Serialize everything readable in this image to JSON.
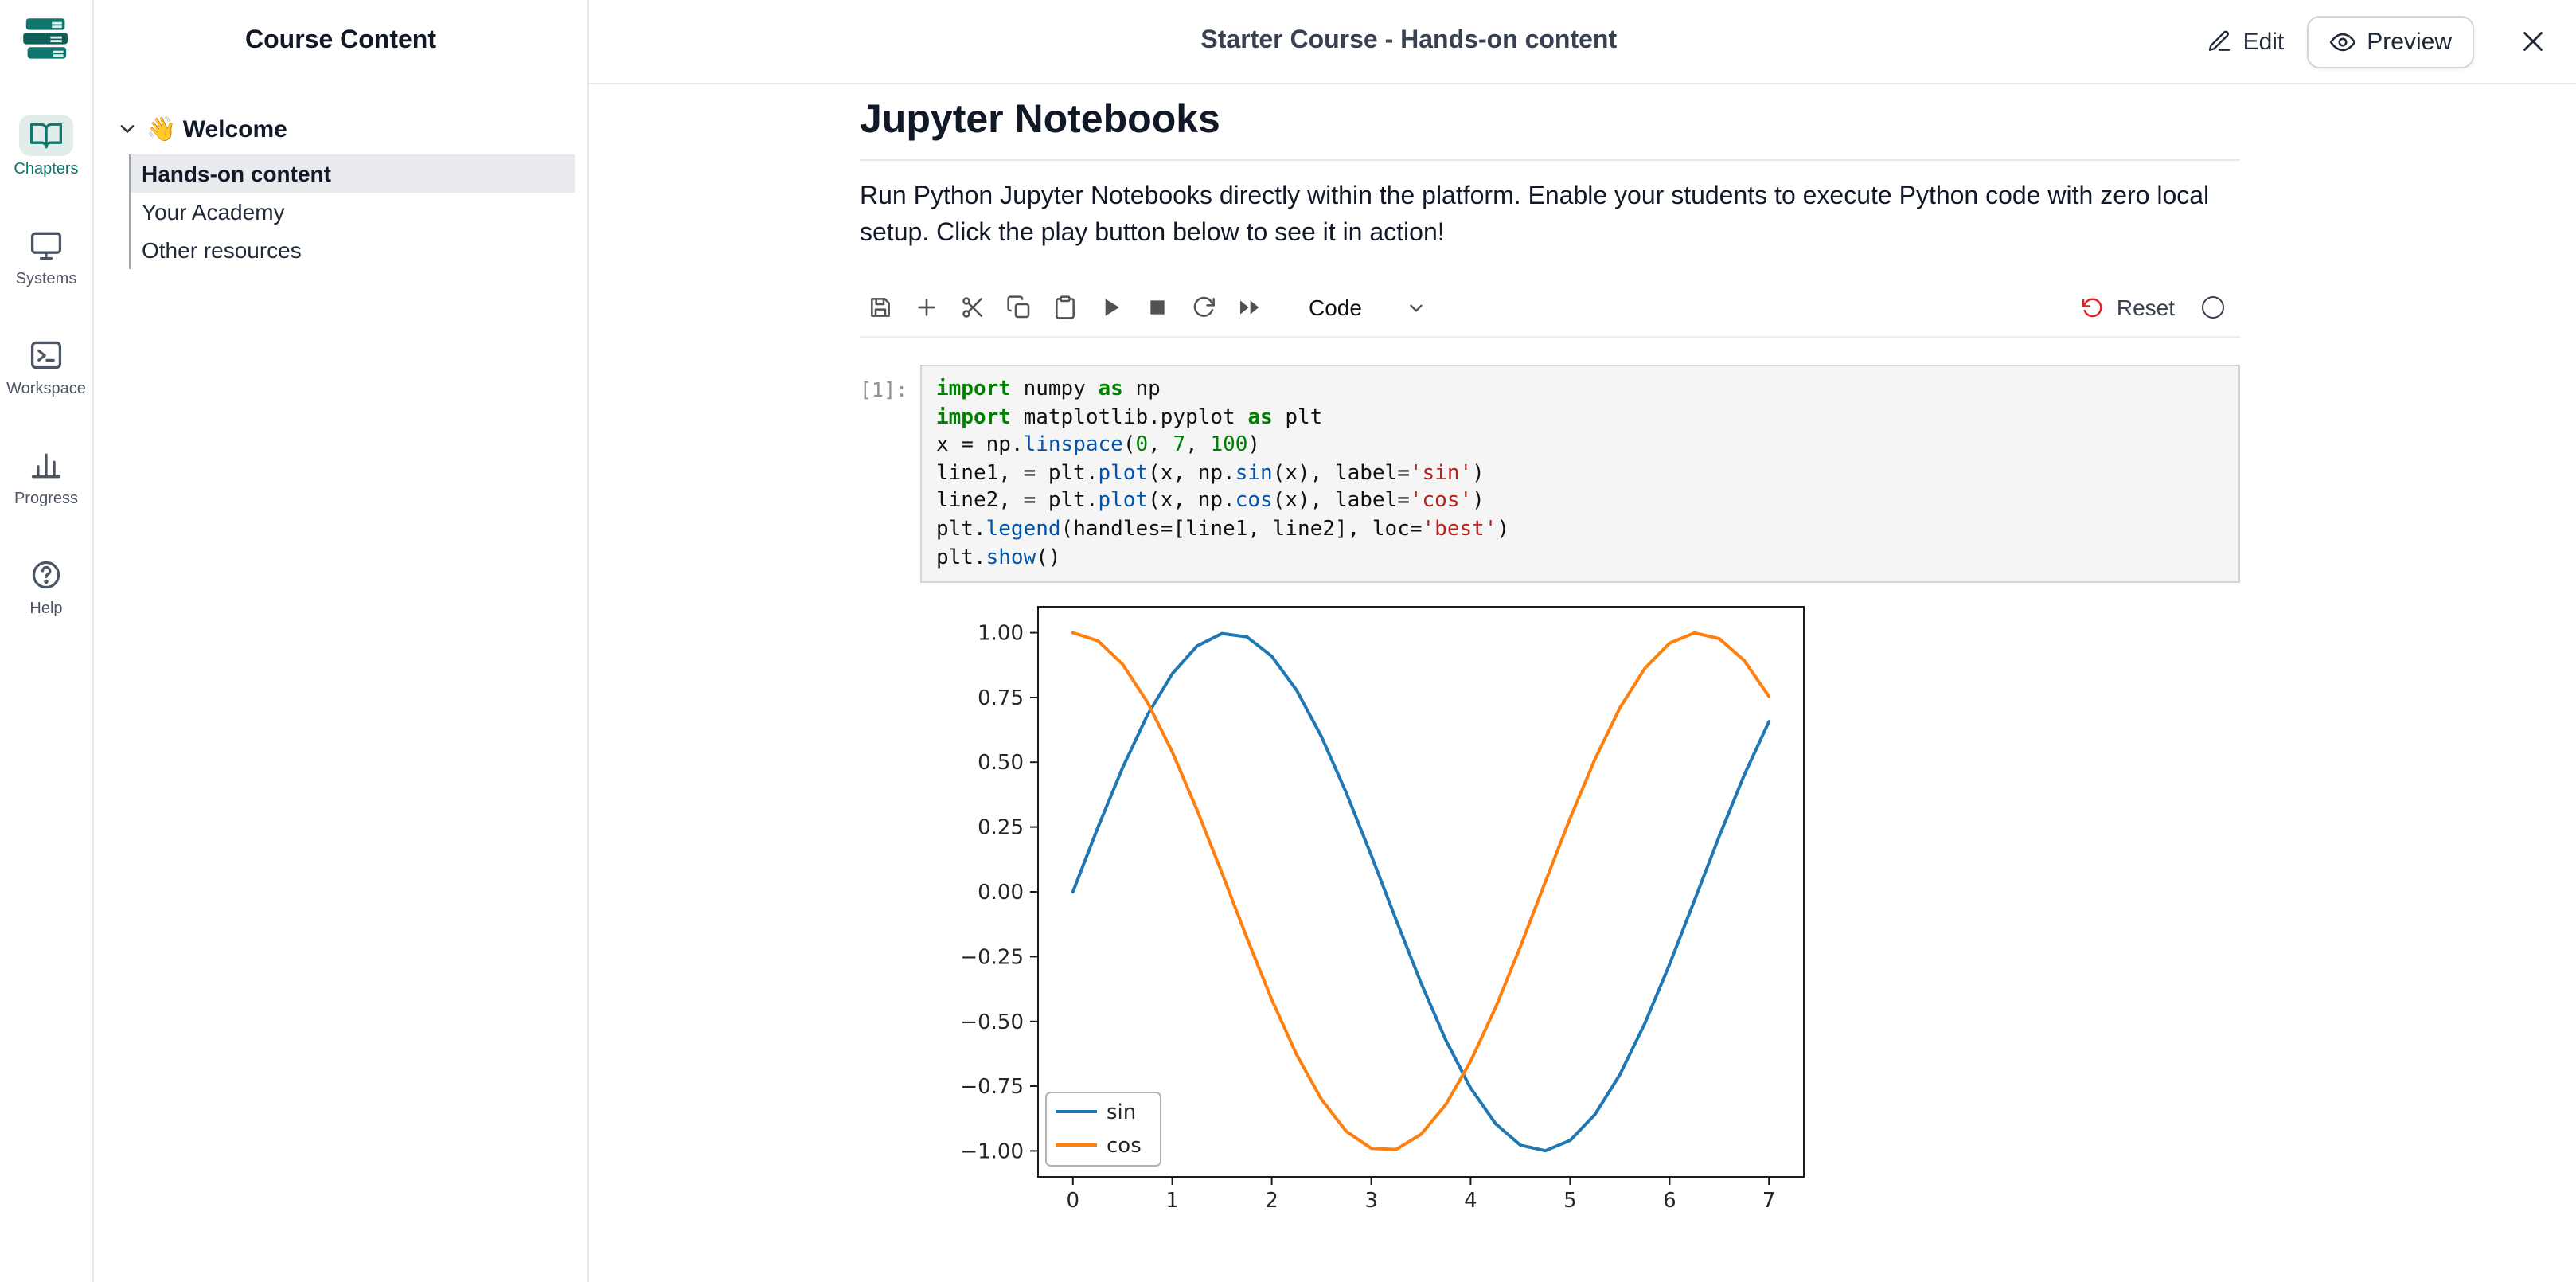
{
  "rail": {
    "items": [
      {
        "label": "Chapters",
        "icon": "book-open-icon",
        "active": true
      },
      {
        "label": "Systems",
        "icon": "monitor-icon",
        "active": false
      },
      {
        "label": "Workspace",
        "icon": "terminal-icon",
        "active": false
      },
      {
        "label": "Progress",
        "icon": "bar-chart-icon",
        "active": false
      },
      {
        "label": "Help",
        "icon": "help-circle-icon",
        "active": false
      }
    ]
  },
  "sidebar": {
    "title": "Course Content",
    "section_label": "👋 Welcome",
    "items": [
      {
        "label": "Hands-on content",
        "selected": true
      },
      {
        "label": "Your Academy",
        "selected": false
      },
      {
        "label": "Other resources",
        "selected": false
      }
    ]
  },
  "header": {
    "title": "Starter Course - Hands-on content",
    "edit_label": "Edit",
    "preview_label": "Preview"
  },
  "content": {
    "heading": "Jupyter Notebooks",
    "paragraph": "Run Python Jupyter Notebooks directly within the platform. Enable your students to execute Python code with zero local setup. Click the play button below to see it in action!",
    "notebook": {
      "toolbar": {
        "cell_type": "Code",
        "reset_label": "Reset",
        "icons": [
          "save",
          "insert-cell-below",
          "cut-cell",
          "copy-cell",
          "paste-cell",
          "run-cell",
          "interrupt-kernel",
          "restart-kernel",
          "restart-and-run-all",
          "reset",
          "kernel-status"
        ]
      },
      "cell": {
        "prompt": "[1]:",
        "lines": [
          [
            [
              "k",
              "import"
            ],
            [
              "t",
              " numpy "
            ],
            [
              "k",
              "as"
            ],
            [
              "t",
              " np"
            ]
          ],
          [
            [
              "k",
              "import"
            ],
            [
              "t",
              " matplotlib.pyplot "
            ],
            [
              "k",
              "as"
            ],
            [
              "t",
              " plt"
            ]
          ],
          [
            [
              "t",
              "x = np."
            ],
            [
              "p",
              "linspace"
            ],
            [
              "t",
              "("
            ],
            [
              "n",
              "0"
            ],
            [
              "t",
              ", "
            ],
            [
              "n",
              "7"
            ],
            [
              "t",
              ", "
            ],
            [
              "n",
              "100"
            ],
            [
              "t",
              ")"
            ]
          ],
          [
            [
              "t",
              "line1, = plt."
            ],
            [
              "p",
              "plot"
            ],
            [
              "t",
              "(x, np."
            ],
            [
              "p",
              "sin"
            ],
            [
              "t",
              "(x), label="
            ],
            [
              "s",
              "'sin'"
            ],
            [
              "t",
              ")"
            ]
          ],
          [
            [
              "t",
              "line2, = plt."
            ],
            [
              "p",
              "plot"
            ],
            [
              "t",
              "(x, np."
            ],
            [
              "p",
              "cos"
            ],
            [
              "t",
              "(x), label="
            ],
            [
              "s",
              "'cos'"
            ],
            [
              "t",
              ")"
            ]
          ],
          [
            [
              "t",
              "plt."
            ],
            [
              "p",
              "legend"
            ],
            [
              "t",
              "(handles=[line1, line2], loc="
            ],
            [
              "s",
              "'best'"
            ],
            [
              "t",
              ")"
            ]
          ],
          [
            [
              "t",
              "plt."
            ],
            [
              "p",
              "show"
            ],
            [
              "t",
              "()"
            ]
          ]
        ]
      }
    }
  },
  "colors": {
    "accent_teal": "#0f766e",
    "reset_red": "#dc2626",
    "sin_blue": "#1f77b4",
    "cos_orange": "#ff7f0e"
  },
  "chart_data": {
    "type": "line",
    "title": "",
    "xlabel": "",
    "ylabel": "",
    "xlim": [
      -0.35,
      7.35
    ],
    "ylim": [
      -1.1,
      1.1
    ],
    "xticks": [
      0,
      1,
      2,
      3,
      4,
      5,
      6,
      7
    ],
    "yticks": [
      1.0,
      0.75,
      0.5,
      0.25,
      0.0,
      -0.25,
      -0.5,
      -0.75,
      -1.0
    ],
    "grid": false,
    "legend_position": "lower left",
    "x": [
      0,
      0.25,
      0.5,
      0.75,
      1,
      1.25,
      1.5,
      1.75,
      2,
      2.25,
      2.5,
      2.75,
      3,
      3.25,
      3.5,
      3.75,
      4,
      4.25,
      4.5,
      4.75,
      5,
      5.25,
      5.5,
      5.75,
      6,
      6.25,
      6.5,
      6.75,
      7
    ],
    "series": [
      {
        "name": "sin",
        "color": "#1f77b4",
        "values": [
          0,
          0.247,
          0.479,
          0.682,
          0.841,
          0.949,
          0.997,
          0.984,
          0.909,
          0.778,
          0.599,
          0.382,
          0.141,
          -0.108,
          -0.351,
          -0.572,
          -0.757,
          -0.895,
          -0.978,
          -0.999,
          -0.959,
          -0.859,
          -0.706,
          -0.508,
          -0.279,
          -0.033,
          0.215,
          0.45,
          0.657
        ]
      },
      {
        "name": "cos",
        "color": "#ff7f0e",
        "values": [
          1,
          0.969,
          0.878,
          0.732,
          0.54,
          0.315,
          0.071,
          -0.178,
          -0.416,
          -0.628,
          -0.801,
          -0.924,
          -0.99,
          -0.994,
          -0.936,
          -0.821,
          -0.654,
          -0.446,
          -0.211,
          0.038,
          0.284,
          0.512,
          0.709,
          0.862,
          0.96,
          0.999,
          0.977,
          0.893,
          0.754
        ]
      }
    ]
  }
}
